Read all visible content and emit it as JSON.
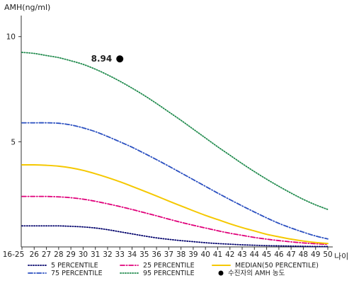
{
  "chart_data": {
    "type": "line",
    "title": "",
    "ylabel": "AMH(ng/ml)",
    "xlabel": "나이",
    "ylim": [
      0,
      11
    ],
    "y_ticks": [
      5,
      10
    ],
    "grid": false,
    "legend_position": "bottom",
    "categories": [
      "16-25",
      "26",
      "27",
      "28",
      "29",
      "30",
      "31",
      "32",
      "33",
      "34",
      "35",
      "36",
      "37",
      "38",
      "39",
      "40",
      "41",
      "42",
      "43",
      "44",
      "45",
      "46",
      "47",
      "48",
      "49",
      "50"
    ],
    "series": [
      {
        "name": "5 PERCENTILE",
        "color": "#00006b",
        "dash": "dotted",
        "values": [
          1.0,
          1.0,
          1.0,
          1.0,
          0.98,
          0.95,
          0.9,
          0.82,
          0.72,
          0.62,
          0.52,
          0.43,
          0.36,
          0.3,
          0.25,
          0.2,
          0.16,
          0.13,
          0.1,
          0.08,
          0.06,
          0.05,
          0.04,
          0.03,
          0.02,
          0.02
        ]
      },
      {
        "name": "25 PERCENTILE",
        "color": "#e0007a",
        "dash": "dashdot",
        "values": [
          2.4,
          2.4,
          2.4,
          2.38,
          2.34,
          2.27,
          2.17,
          2.05,
          1.92,
          1.78,
          1.63,
          1.48,
          1.32,
          1.17,
          1.03,
          0.9,
          0.77,
          0.65,
          0.55,
          0.45,
          0.37,
          0.3,
          0.24,
          0.19,
          0.15,
          0.12
        ]
      },
      {
        "name": "MEDIAN(50 PERCENTILE)",
        "color": "#f5c800",
        "dash": "solid",
        "values": [
          3.9,
          3.9,
          3.88,
          3.84,
          3.76,
          3.64,
          3.48,
          3.3,
          3.1,
          2.88,
          2.65,
          2.42,
          2.18,
          1.95,
          1.72,
          1.5,
          1.3,
          1.1,
          0.92,
          0.76,
          0.6,
          0.48,
          0.37,
          0.28,
          0.21,
          0.16
        ]
      },
      {
        "name": "75 PERCENTILE",
        "color": "#2a4fc0",
        "dash": "dashdot",
        "values": [
          5.9,
          5.9,
          5.9,
          5.88,
          5.8,
          5.66,
          5.48,
          5.25,
          5.0,
          4.74,
          4.45,
          4.15,
          3.84,
          3.52,
          3.2,
          2.88,
          2.56,
          2.25,
          1.95,
          1.66,
          1.38,
          1.12,
          0.9,
          0.7,
          0.52,
          0.38
        ]
      },
      {
        "name": "95 PERCENTILE",
        "color": "#1f8a4c",
        "dash": "dotted",
        "values": [
          9.25,
          9.2,
          9.1,
          9.0,
          8.85,
          8.68,
          8.45,
          8.18,
          7.88,
          7.55,
          7.2,
          6.82,
          6.42,
          6.02,
          5.6,
          5.18,
          4.76,
          4.36,
          3.96,
          3.58,
          3.22,
          2.88,
          2.56,
          2.26,
          2.0,
          1.78
        ]
      }
    ],
    "point": {
      "name": "수진자의 AMH 농도",
      "x": "33",
      "y": 8.94,
      "label": "8.94",
      "color": "#000000"
    }
  }
}
